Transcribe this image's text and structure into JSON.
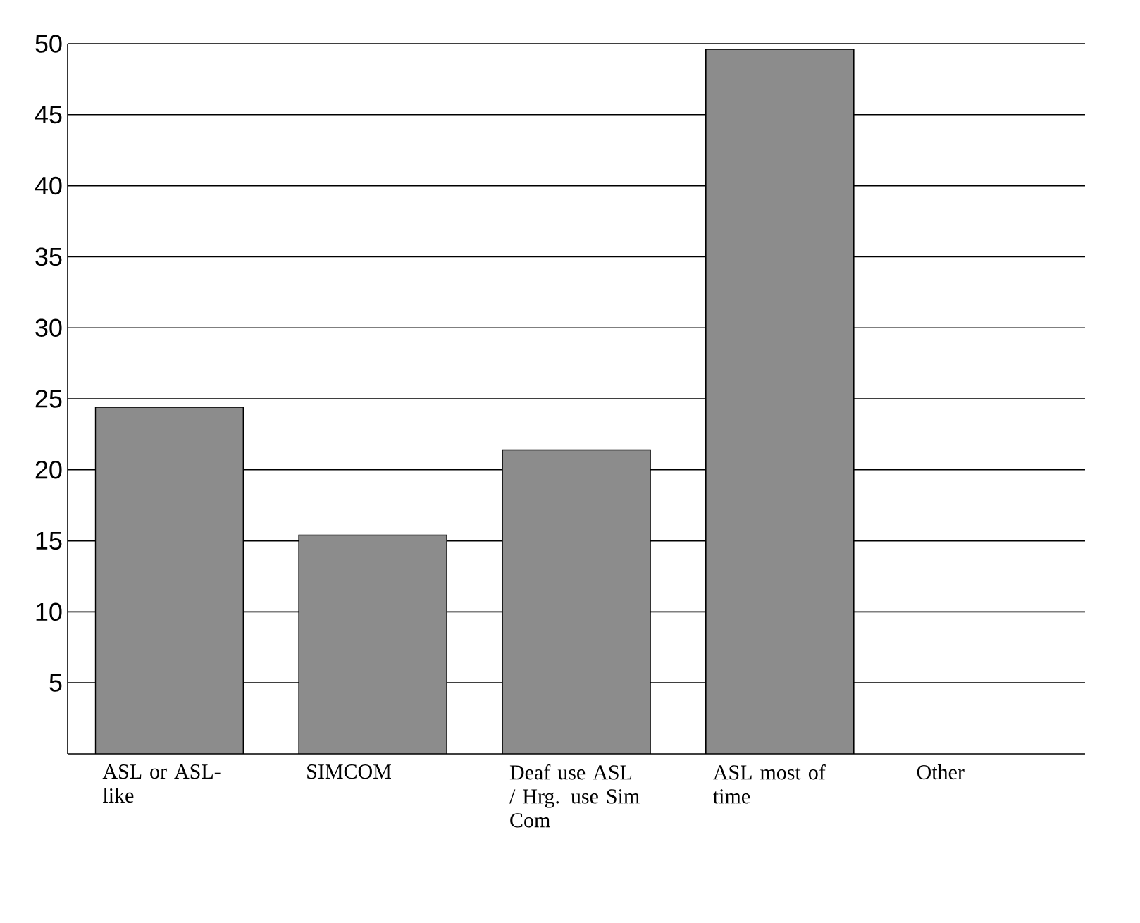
{
  "chart_data": {
    "type": "bar",
    "categories": [
      "ASL or ASL-like",
      "SIMCOM",
      "Deaf use ASL / Hrg. use Sim Com",
      "ASL  most of time",
      "Other"
    ],
    "values": [
      24.4,
      15.4,
      21.4,
      49.6,
      null
    ],
    "color": "#8c8c8c",
    "ylim": [
      0,
      50
    ],
    "yticks": [
      5,
      10,
      15,
      20,
      25,
      30,
      35,
      40,
      45,
      50
    ],
    "grid": "y",
    "legend": false
  }
}
